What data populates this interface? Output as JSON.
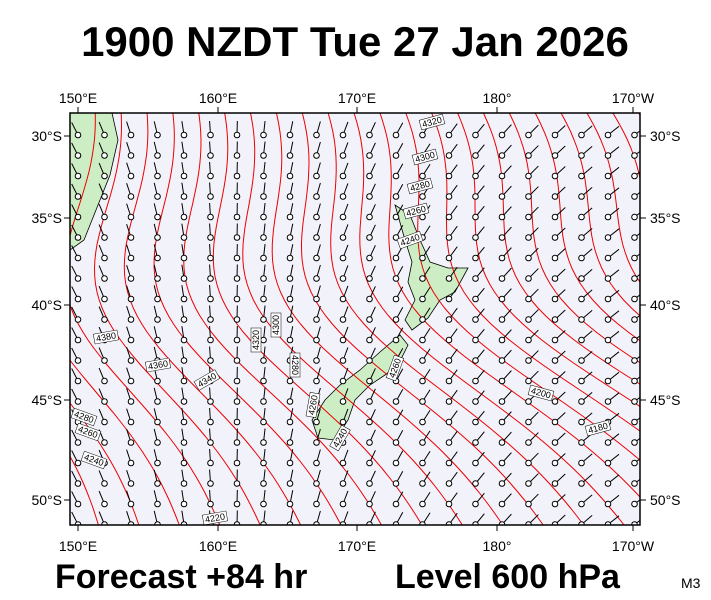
{
  "header": {
    "title": "1900 NZDT Tue 27 Jan 2026"
  },
  "map": {
    "lon_labels": [
      "150°E",
      "160°E",
      "170°E",
      "180°",
      "170°W"
    ],
    "lat_labels": [
      "30°S",
      "35°S",
      "40°S",
      "45°S",
      "50°S"
    ],
    "contour_labels": [
      4320,
      4300,
      4280,
      4260,
      4240,
      4380,
      4360,
      4340,
      4320,
      4300,
      4280,
      4260,
      4240,
      4220,
      4200,
      4180,
      4260,
      4280,
      4260,
      4240
    ]
  },
  "footer": {
    "forecast": "Forecast +84 hr",
    "level": "Level 600 hPa",
    "code": "M3"
  }
}
